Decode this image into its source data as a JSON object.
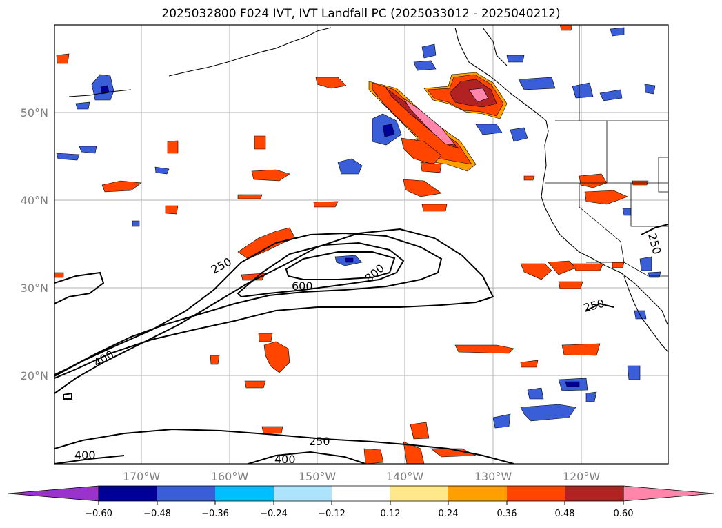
{
  "title": "2025032800 F024 IVT, IVT Landfall PC (2025033012 - 2025040212)",
  "map": {
    "lat_labels": [
      "20°N",
      "30°N",
      "40°N",
      "50°N"
    ],
    "lon_labels": [
      "170°W",
      "160°W",
      "150°W",
      "140°W",
      "130°W",
      "120°W"
    ],
    "ivt_contour_levels": [
      "250",
      "400",
      "600",
      "800"
    ],
    "contour_labels": [
      "250",
      "600",
      "800",
      "400",
      "250",
      "400",
      "250",
      "400",
      "250"
    ]
  },
  "colorbar": {
    "colors": [
      "#9933cc",
      "#000099",
      "#3a5ed8",
      "#00bfff",
      "#aee4fb",
      "#ffffff",
      "#ffe88a",
      "#ffa000",
      "#ff4500",
      "#b22222",
      "#ff85ab"
    ],
    "tick_labels": [
      "−0.60",
      "−0.48",
      "−0.36",
      "−0.24",
      "−0.12",
      "0.12",
      "0.24",
      "0.36",
      "0.48",
      "0.60"
    ]
  }
}
